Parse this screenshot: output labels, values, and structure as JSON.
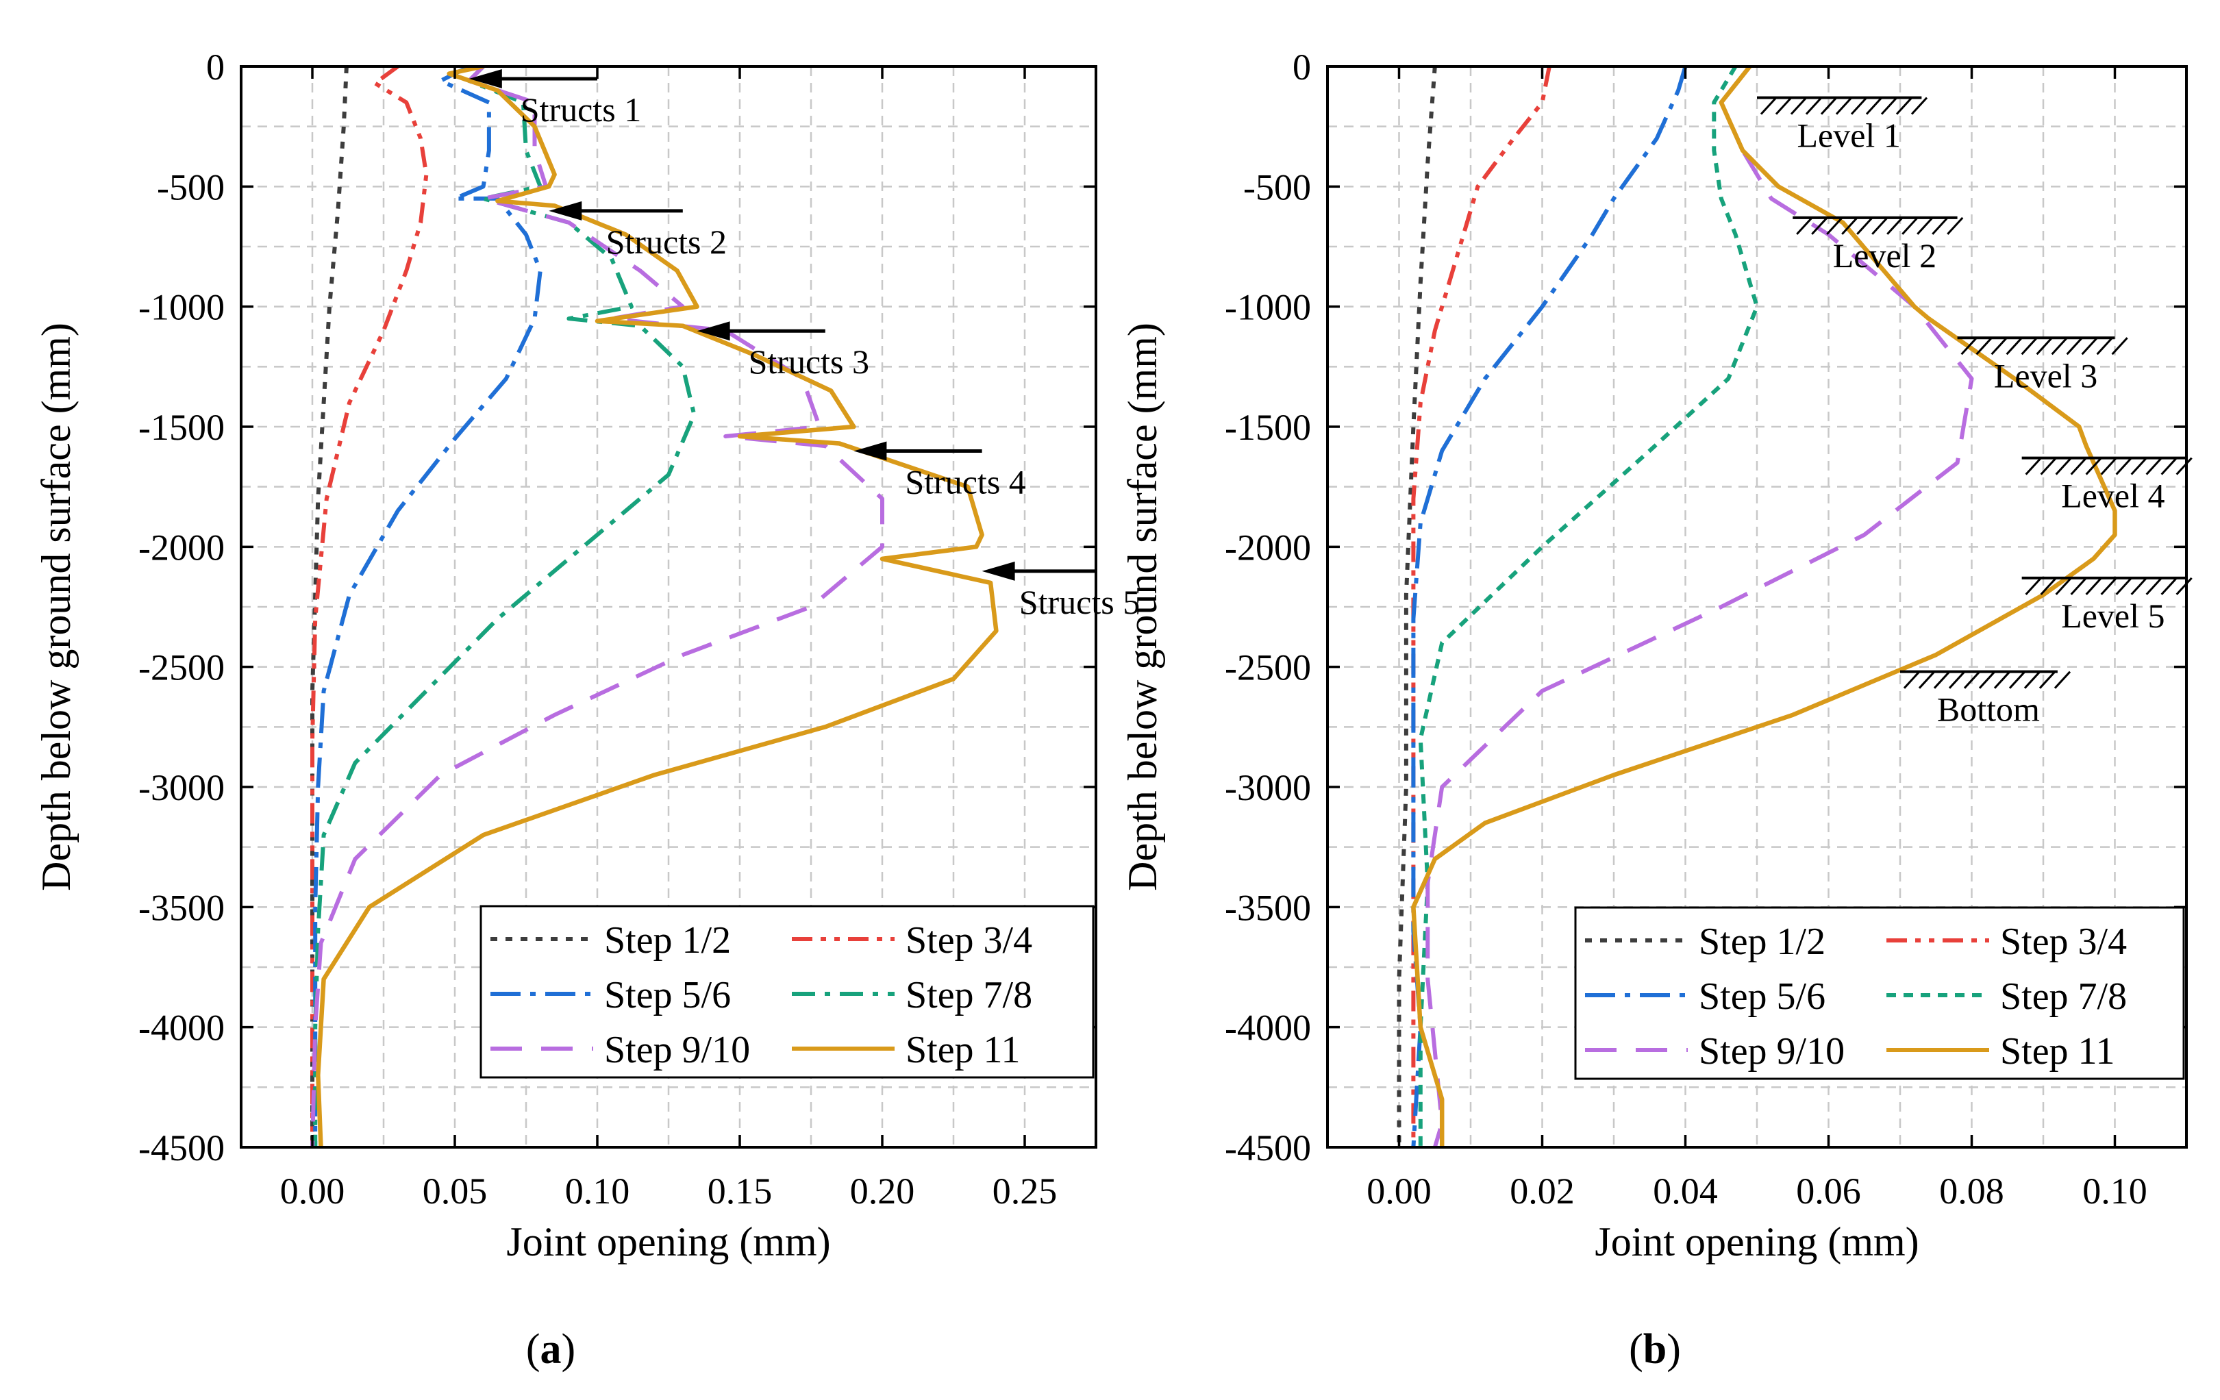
{
  "chart_data": [
    {
      "type": "line",
      "panel": "a",
      "caption_letter": "a",
      "xlabel": "Joint opening (mm)",
      "ylabel": "Depth below ground surface (mm)",
      "xlim": [
        -0.025,
        0.275
      ],
      "ylim": [
        -4500,
        0
      ],
      "xticks": [
        0.0,
        0.05,
        0.1,
        0.15,
        0.2,
        0.25
      ],
      "xtick_labels": [
        "0.00",
        "0.05",
        "0.10",
        "0.15",
        "0.20",
        "0.25"
      ],
      "yticks": [
        0,
        -500,
        -1000,
        -1500,
        -2000,
        -2500,
        -3000,
        -3500,
        -4000,
        -4500
      ],
      "ytick_labels": [
        "0",
        "-500",
        "-1000",
        "-1500",
        "-2000",
        "-2500",
        "-3000",
        "-3500",
        "-4000",
        "-4500"
      ],
      "grid": true,
      "legend_position": "bottom-right",
      "series": [
        {
          "name": "Step 1/2",
          "color": "#3d3d3d",
          "dash": "dot",
          "points": [
            [
              0.012,
              0
            ],
            [
              0.011,
              -250
            ],
            [
              0.009,
              -600
            ],
            [
              0.006,
              -1000
            ],
            [
              0.004,
              -1400
            ],
            [
              0.002,
              -1800
            ],
            [
              0.001,
              -2200
            ],
            [
              0.0,
              -2600
            ],
            [
              0.0,
              -3000
            ],
            [
              0.0,
              -3500
            ],
            [
              0.0,
              -4000
            ],
            [
              0.0,
              -4500
            ]
          ]
        },
        {
          "name": "Step 3/4",
          "color": "#e8403a",
          "dash": "dashdotdot",
          "points": [
            [
              0.03,
              0
            ],
            [
              0.022,
              -70
            ],
            [
              0.033,
              -150
            ],
            [
              0.038,
              -300
            ],
            [
              0.04,
              -450
            ],
            [
              0.038,
              -650
            ],
            [
              0.033,
              -850
            ],
            [
              0.025,
              -1100
            ],
            [
              0.013,
              -1400
            ],
            [
              0.005,
              -1800
            ],
            [
              0.001,
              -2300
            ],
            [
              0.0,
              -2800
            ],
            [
              0.0,
              -3500
            ],
            [
              0.0,
              -4000
            ],
            [
              0.0,
              -4500
            ]
          ]
        },
        {
          "name": "Step 5/6",
          "color": "#1f6fd6",
          "dash": "dashdot",
          "points": [
            [
              0.055,
              0
            ],
            [
              0.045,
              -60
            ],
            [
              0.062,
              -150
            ],
            [
              0.062,
              -350
            ],
            [
              0.06,
              -500
            ],
            [
              0.05,
              -550
            ],
            [
              0.065,
              -550
            ],
            [
              0.075,
              -700
            ],
            [
              0.08,
              -850
            ],
            [
              0.078,
              -1050
            ],
            [
              0.068,
              -1300
            ],
            [
              0.05,
              -1550
            ],
            [
              0.03,
              -1850
            ],
            [
              0.013,
              -2200
            ],
            [
              0.004,
              -2600
            ],
            [
              0.002,
              -3000
            ],
            [
              0.001,
              -3500
            ],
            [
              0.001,
              -4000
            ],
            [
              0.001,
              -4500
            ]
          ]
        },
        {
          "name": "Step 7/8",
          "color": "#17a27c",
          "dash": "dashdotlong",
          "points": [
            [
              0.06,
              0
            ],
            [
              0.055,
              -60
            ],
            [
              0.074,
              -150
            ],
            [
              0.075,
              -350
            ],
            [
              0.08,
              -500
            ],
            [
              0.06,
              -550
            ],
            [
              0.09,
              -650
            ],
            [
              0.105,
              -800
            ],
            [
              0.112,
              -1000
            ],
            [
              0.09,
              -1050
            ],
            [
              0.115,
              -1080
            ],
            [
              0.13,
              -1250
            ],
            [
              0.134,
              -1450
            ],
            [
              0.125,
              -1700
            ],
            [
              0.095,
              -2000
            ],
            [
              0.065,
              -2300
            ],
            [
              0.04,
              -2600
            ],
            [
              0.015,
              -2900
            ],
            [
              0.004,
              -3200
            ],
            [
              0.002,
              -3600
            ],
            [
              0.001,
              -4000
            ],
            [
              0.001,
              -4500
            ]
          ]
        },
        {
          "name": "Step 9/10",
          "color": "#b86de0",
          "dash": "dashlong",
          "points": [
            [
              0.06,
              0
            ],
            [
              0.055,
              -60
            ],
            [
              0.078,
              -150
            ],
            [
              0.078,
              -350
            ],
            [
              0.082,
              -500
            ],
            [
              0.06,
              -550
            ],
            [
              0.09,
              -650
            ],
            [
              0.115,
              -850
            ],
            [
              0.13,
              -1000
            ],
            [
              0.105,
              -1050
            ],
            [
              0.145,
              -1100
            ],
            [
              0.172,
              -1300
            ],
            [
              0.178,
              -1500
            ],
            [
              0.145,
              -1540
            ],
            [
              0.18,
              -1580
            ],
            [
              0.2,
              -1800
            ],
            [
              0.2,
              -2000
            ],
            [
              0.175,
              -2250
            ],
            [
              0.13,
              -2450
            ],
            [
              0.085,
              -2700
            ],
            [
              0.045,
              -2950
            ],
            [
              0.015,
              -3300
            ],
            [
              0.003,
              -3650
            ],
            [
              0.001,
              -4000
            ],
            [
              0.0,
              -4500
            ]
          ]
        },
        {
          "name": "Step 11",
          "color": "#d99a1a",
          "dash": "solid",
          "points": [
            [
              0.06,
              0
            ],
            [
              0.048,
              -30
            ],
            [
              0.065,
              -100
            ],
            [
              0.078,
              -250
            ],
            [
              0.085,
              -450
            ],
            [
              0.083,
              -500
            ],
            [
              0.065,
              -560
            ],
            [
              0.085,
              -580
            ],
            [
              0.11,
              -700
            ],
            [
              0.128,
              -850
            ],
            [
              0.135,
              -1000
            ],
            [
              0.1,
              -1060
            ],
            [
              0.13,
              -1080
            ],
            [
              0.155,
              -1200
            ],
            [
              0.182,
              -1350
            ],
            [
              0.19,
              -1500
            ],
            [
              0.15,
              -1540
            ],
            [
              0.185,
              -1570
            ],
            [
              0.23,
              -1750
            ],
            [
              0.235,
              -1950
            ],
            [
              0.233,
              -2000
            ],
            [
              0.2,
              -2050
            ],
            [
              0.238,
              -2150
            ],
            [
              0.24,
              -2350
            ],
            [
              0.225,
              -2550
            ],
            [
              0.18,
              -2750
            ],
            [
              0.12,
              -2950
            ],
            [
              0.06,
              -3200
            ],
            [
              0.02,
              -3500
            ],
            [
              0.004,
              -3800
            ],
            [
              0.002,
              -4200
            ],
            [
              0.003,
              -4500
            ]
          ]
        }
      ],
      "annotations": [
        {
          "text": "Structs 1",
          "depth": 0,
          "x_arrow_tip": 0.055,
          "x_arrow_tail": 0.1
        },
        {
          "text": "Structs 2",
          "depth": -550,
          "x_arrow_tip": 0.083,
          "x_arrow_tail": 0.13
        },
        {
          "text": "Structs 3",
          "depth": -1050,
          "x_arrow_tip": 0.135,
          "x_arrow_tail": 0.18
        },
        {
          "text": "Structs 4",
          "depth": -1550,
          "x_arrow_tip": 0.19,
          "x_arrow_tail": 0.235
        },
        {
          "text": "Structs 5",
          "depth": -2050,
          "x_arrow_tip": 0.235,
          "x_arrow_tail": 0.275
        }
      ]
    },
    {
      "type": "line",
      "panel": "b",
      "caption_letter": "b",
      "xlabel": "Joint opening (mm)",
      "ylabel": "Depth below ground surface (mm)",
      "xlim": [
        -0.01,
        0.11
      ],
      "ylim": [
        -4500,
        0
      ],
      "xticks": [
        0.0,
        0.02,
        0.04,
        0.06,
        0.08,
        0.1
      ],
      "xtick_labels": [
        "0.00",
        "0.02",
        "0.04",
        "0.06",
        "0.08",
        "0.10"
      ],
      "yticks": [
        0,
        -500,
        -1000,
        -1500,
        -2000,
        -2500,
        -3000,
        -3500,
        -4000,
        -4500
      ],
      "ytick_labels": [
        "0",
        "-500",
        "-1000",
        "-1500",
        "-2000",
        "-2500",
        "-3000",
        "-3500",
        "-4000",
        "-4500"
      ],
      "grid": true,
      "legend_position": "bottom-right",
      "series": [
        {
          "name": "Step 1/2",
          "color": "#3d3d3d",
          "dash": "dot",
          "points": [
            [
              0.005,
              0
            ],
            [
              0.004,
              -400
            ],
            [
              0.003,
              -900
            ],
            [
              0.002,
              -1500
            ],
            [
              0.001,
              -2200
            ],
            [
              0.001,
              -3000
            ],
            [
              0.0,
              -3800
            ],
            [
              0.0,
              -4500
            ]
          ]
        },
        {
          "name": "Step 3/4",
          "color": "#e8403a",
          "dash": "dashdotdot",
          "points": [
            [
              0.021,
              0
            ],
            [
              0.02,
              -150
            ],
            [
              0.016,
              -300
            ],
            [
              0.011,
              -500
            ],
            [
              0.008,
              -800
            ],
            [
              0.005,
              -1100
            ],
            [
              0.003,
              -1400
            ],
            [
              0.002,
              -1800
            ],
            [
              0.002,
              -2300
            ],
            [
              0.002,
              -3000
            ],
            [
              0.002,
              -3600
            ],
            [
              0.002,
              -4000
            ],
            [
              0.002,
              -4500
            ]
          ]
        },
        {
          "name": "Step 5/6",
          "color": "#1f6fd6",
          "dash": "dashdot",
          "points": [
            [
              0.04,
              0
            ],
            [
              0.039,
              -100
            ],
            [
              0.036,
              -300
            ],
            [
              0.03,
              -550
            ],
            [
              0.027,
              -700
            ],
            [
              0.02,
              -1000
            ],
            [
              0.012,
              -1300
            ],
            [
              0.006,
              -1600
            ],
            [
              0.003,
              -1900
            ],
            [
              0.002,
              -2300
            ],
            [
              0.002,
              -3000
            ],
            [
              0.002,
              -3600
            ],
            [
              0.003,
              -4000
            ],
            [
              0.002,
              -4500
            ]
          ]
        },
        {
          "name": "Step 7/8",
          "color": "#17a27c",
          "dash": "dash",
          "points": [
            [
              0.047,
              0
            ],
            [
              0.044,
              -150
            ],
            [
              0.044,
              -350
            ],
            [
              0.045,
              -550
            ],
            [
              0.047,
              -700
            ],
            [
              0.05,
              -1000
            ],
            [
              0.046,
              -1300
            ],
            [
              0.035,
              -1600
            ],
            [
              0.02,
              -2000
            ],
            [
              0.006,
              -2400
            ],
            [
              0.003,
              -2800
            ],
            [
              0.004,
              -3400
            ],
            [
              0.003,
              -4000
            ],
            [
              0.003,
              -4500
            ]
          ]
        },
        {
          "name": "Step 9/10",
          "color": "#b86de0",
          "dash": "dashlong",
          "points": [
            [
              0.049,
              0
            ],
            [
              0.045,
              -150
            ],
            [
              0.048,
              -350
            ],
            [
              0.052,
              -550
            ],
            [
              0.06,
              -700
            ],
            [
              0.072,
              -1000
            ],
            [
              0.08,
              -1300
            ],
            [
              0.078,
              -1650
            ],
            [
              0.065,
              -1950
            ],
            [
              0.045,
              -2250
            ],
            [
              0.02,
              -2600
            ],
            [
              0.006,
              -3000
            ],
            [
              0.004,
              -3400
            ],
            [
              0.004,
              -3800
            ],
            [
              0.006,
              -4400
            ],
            [
              0.005,
              -4500
            ]
          ]
        },
        {
          "name": "Step 11",
          "color": "#d99a1a",
          "dash": "solid",
          "points": [
            [
              0.049,
              0
            ],
            [
              0.045,
              -150
            ],
            [
              0.048,
              -350
            ],
            [
              0.053,
              -500
            ],
            [
              0.062,
              -650
            ],
            [
              0.072,
              -1000
            ],
            [
              0.074,
              -1050
            ],
            [
              0.086,
              -1300
            ],
            [
              0.095,
              -1500
            ],
            [
              0.096,
              -1580
            ],
            [
              0.1,
              -1850
            ],
            [
              0.1,
              -1950
            ],
            [
              0.097,
              -2050
            ],
            [
              0.09,
              -2200
            ],
            [
              0.075,
              -2450
            ],
            [
              0.055,
              -2700
            ],
            [
              0.03,
              -2950
            ],
            [
              0.012,
              -3150
            ],
            [
              0.005,
              -3300
            ],
            [
              0.002,
              -3500
            ],
            [
              0.003,
              -4000
            ],
            [
              0.006,
              -4300
            ],
            [
              0.006,
              -4500
            ]
          ]
        }
      ],
      "annotations": [
        {
          "text": "Level 1",
          "depth": -130,
          "x_start": 0.05,
          "x_end": 0.073
        },
        {
          "text": "Level 2",
          "depth": -630,
          "x_start": 0.055,
          "x_end": 0.078
        },
        {
          "text": "Level 3",
          "depth": -1130,
          "x_start": 0.078,
          "x_end": 0.1
        },
        {
          "text": "Level 4",
          "depth": -1630,
          "x_start": 0.087,
          "x_end": 0.11
        },
        {
          "text": "Level 5",
          "depth": -2130,
          "x_start": 0.087,
          "x_end": 0.11
        },
        {
          "text": "Bottom",
          "depth": -2520,
          "x_start": 0.07,
          "x_end": 0.092
        }
      ]
    }
  ]
}
